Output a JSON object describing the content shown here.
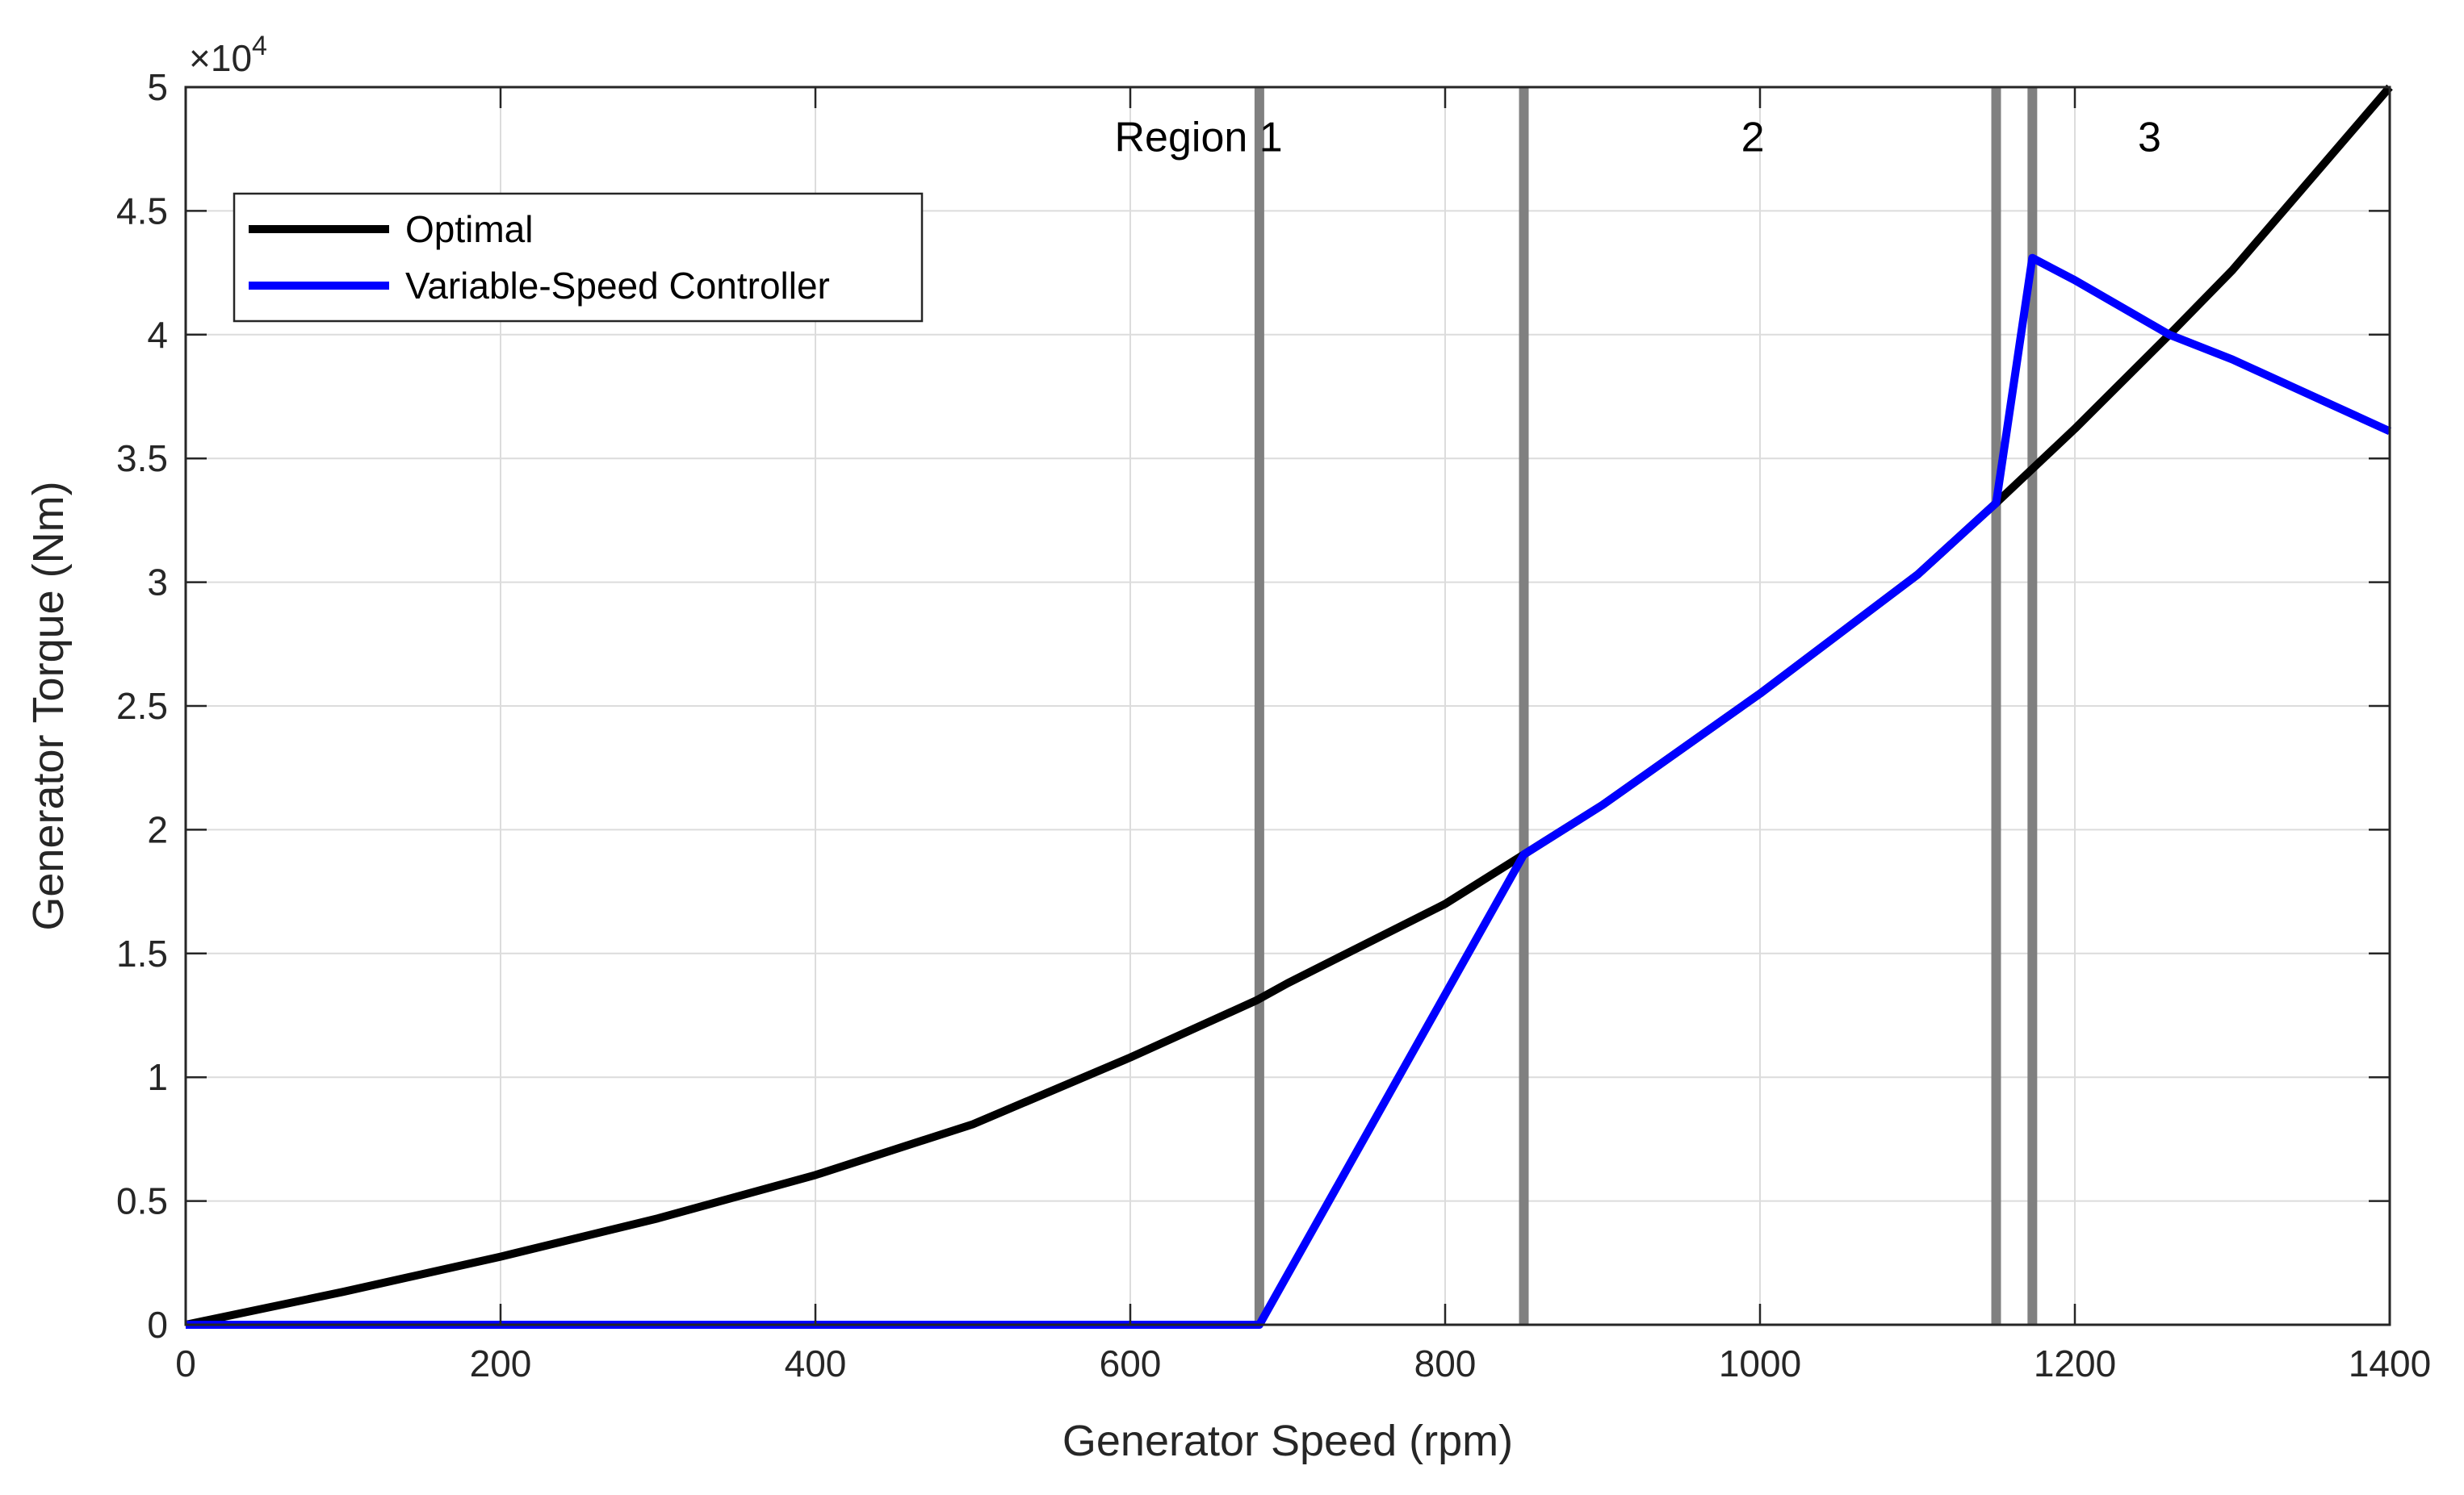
{
  "chart_data": {
    "type": "line",
    "title": "",
    "xlabel": "Generator Speed (rpm)",
    "ylabel": "Generator Torque (Nm)",
    "xlim": [
      0,
      1400
    ],
    "ylim": [
      0,
      50000
    ],
    "xticks": [
      0,
      200,
      400,
      600,
      800,
      1000,
      1200,
      1400
    ],
    "xtick_labels": [
      "0",
      "200",
      "400",
      "600",
      "800",
      "1000",
      "1200",
      "1400"
    ],
    "yticks": [
      0,
      5000,
      10000,
      15000,
      20000,
      25000,
      30000,
      35000,
      40000,
      45000,
      50000
    ],
    "ytick_labels": [
      "0",
      "0.5",
      "1",
      "1.5",
      "2",
      "2.5",
      "3",
      "3.5",
      "4",
      "4.5",
      "5"
    ],
    "y_exponent_base": "×10",
    "y_exponent_power": "4",
    "grid": true,
    "legend_position": "top-left",
    "series": [
      {
        "name": "Optimal",
        "color": "#000000",
        "x": [
          0,
          100,
          200,
          300,
          400,
          500,
          600,
          680,
          700,
          800,
          850,
          900,
          1000,
          1100,
          1150,
          1175,
          1200,
          1260,
          1300,
          1400
        ],
        "y": [
          0,
          1330,
          2750,
          4300,
          6050,
          8100,
          10800,
          13100,
          13800,
          17000,
          19000,
          21000,
          25500,
          30300,
          33200,
          34700,
          36200,
          40000,
          42600,
          50000
        ]
      },
      {
        "name": "Variable-Speed Controller",
        "color": "#0000ff",
        "x": [
          0,
          100,
          200,
          300,
          400,
          500,
          600,
          682,
          850,
          900,
          1000,
          1100,
          1150,
          1173,
          1200,
          1260,
          1300,
          1400
        ],
        "y": [
          0,
          0,
          0,
          0,
          0,
          0,
          0,
          0,
          19000,
          21000,
          25500,
          30300,
          33200,
          43100,
          42200,
          40000,
          39000,
          36100
        ]
      }
    ],
    "boundary_lines": {
      "color": "#808080",
      "x": [
        682,
        850,
        1150,
        1173
      ]
    },
    "region_labels": [
      {
        "text": "Region 1",
        "x": 590,
        "y": 48000
      },
      {
        "text": "2",
        "x": 988,
        "y": 48000
      },
      {
        "text": "3",
        "x": 1240,
        "y": 48000
      }
    ]
  }
}
